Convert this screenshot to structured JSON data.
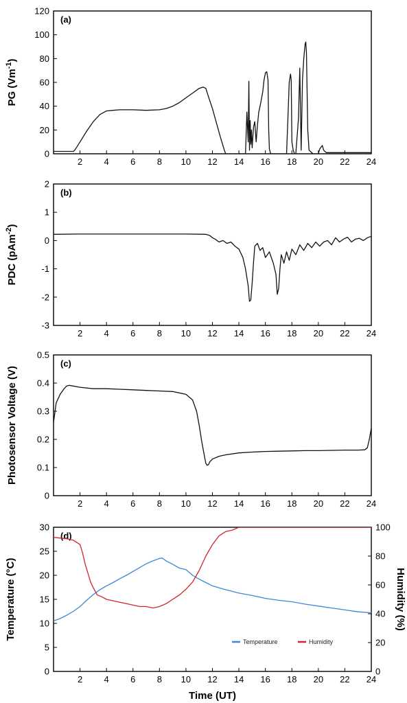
{
  "chart_data": [
    {
      "panel": "(a)",
      "type": "line",
      "ylabel": "PG (Vm-1)",
      "ylabel_base": "PG (Vm",
      "ylabel_sup": "-1",
      "ylabel_end": ")",
      "xlim": [
        0,
        24
      ],
      "ylim": [
        0,
        120
      ],
      "xticks": [
        "2",
        "4",
        "6",
        "8",
        "10",
        "12",
        "14",
        "16",
        "18",
        "20",
        "22",
        "24"
      ],
      "yticks": [
        "0",
        "20",
        "40",
        "60",
        "80",
        "100",
        "120"
      ],
      "series": [
        {
          "color": "#111111",
          "x": [
            0,
            1.5,
            1.6,
            2.0,
            2.5,
            3.0,
            3.5,
            4.0,
            4.5,
            5,
            6,
            7,
            8,
            8.5,
            9,
            9.5,
            10,
            10.5,
            11,
            11.3,
            11.5,
            11.7,
            12.0,
            12.3,
            12.6,
            12.9,
            13.0,
            14.0,
            14.5,
            14.6,
            14.7,
            14.75,
            14.8,
            14.85,
            14.9,
            14.95,
            15.0,
            15.1,
            15.2,
            15.3,
            15.4,
            15.5,
            15.6,
            15.7,
            15.8,
            15.9,
            16.0,
            16.1,
            16.2,
            16.25,
            16.3,
            16.4,
            17.0,
            17.6,
            17.7,
            17.8,
            17.9,
            17.95,
            18.0,
            18.1,
            18.2,
            18.3,
            18.5,
            18.6,
            18.7,
            18.8,
            18.9,
            19.0,
            19.05,
            19.1,
            19.2,
            19.3,
            19.6,
            20.0,
            20.1,
            20.3,
            20.4,
            20.6,
            21,
            22,
            23,
            24
          ],
          "y": [
            2,
            2,
            3,
            10,
            19,
            27,
            33,
            36,
            36.5,
            37,
            37,
            36.5,
            37,
            38,
            40,
            43,
            47,
            51,
            55,
            56,
            55,
            48,
            38,
            26,
            14,
            3,
            0,
            0,
            0,
            35,
            10,
            61,
            3,
            28,
            8,
            20,
            5,
            22,
            27,
            10,
            24,
            35,
            40,
            46,
            52,
            62,
            68,
            69,
            62,
            20,
            4,
            0,
            0,
            0,
            30,
            60,
            67,
            62,
            10,
            3,
            0,
            0,
            30,
            72,
            3,
            62,
            80,
            92,
            94,
            85,
            20,
            3,
            0,
            0,
            4,
            7,
            3,
            1,
            1,
            1,
            1,
            1
          ]
        }
      ]
    },
    {
      "panel": "(b)",
      "type": "line",
      "ylabel": "PDC (pAm-2)",
      "ylabel_base": "PDC (pAm",
      "ylabel_sup": "-2",
      "ylabel_end": ")",
      "xlim": [
        0,
        24
      ],
      "ylim": [
        -3,
        2
      ],
      "xticks": [
        "2",
        "4",
        "6",
        "8",
        "10",
        "12",
        "14",
        "16",
        "18",
        "20",
        "22",
        "24"
      ],
      "yticks": [
        "-3",
        "-2",
        "-1",
        "0",
        "1",
        "2"
      ],
      "series": [
        {
          "color": "#111111",
          "x": [
            0,
            2,
            4,
            6,
            8,
            10,
            11.5,
            11.8,
            12.0,
            12.2,
            12.5,
            12.8,
            13.1,
            13.4,
            13.7,
            14.0,
            14.3,
            14.5,
            14.7,
            14.8,
            14.9,
            15.0,
            15.1,
            15.2,
            15.4,
            15.6,
            15.8,
            16.0,
            16.3,
            16.6,
            16.8,
            16.9,
            17.0,
            17.1,
            17.2,
            17.4,
            17.6,
            17.8,
            18.0,
            18.3,
            18.6,
            18.9,
            19.2,
            19.5,
            19.8,
            20.1,
            20.4,
            20.7,
            21.0,
            21.3,
            21.6,
            21.9,
            22.2,
            22.5,
            22.8,
            23.1,
            23.4,
            23.7,
            24
          ],
          "y": [
            0.22,
            0.23,
            0.23,
            0.23,
            0.23,
            0.23,
            0.22,
            0.18,
            0.1,
            0.05,
            -0.05,
            0.0,
            -0.1,
            -0.05,
            -0.2,
            -0.3,
            -0.6,
            -1.0,
            -1.6,
            -2.15,
            -2.1,
            -1.5,
            -0.8,
            -0.2,
            -0.1,
            -0.35,
            -0.25,
            -0.6,
            -0.4,
            -0.8,
            -1.2,
            -1.9,
            -1.7,
            -1.0,
            -0.5,
            -0.8,
            -0.4,
            -0.7,
            -0.3,
            -0.5,
            -0.15,
            -0.35,
            -0.1,
            -0.25,
            -0.05,
            -0.2,
            -0.05,
            0.0,
            -0.15,
            0.1,
            -0.05,
            0.05,
            0.12,
            -0.05,
            0.05,
            0.08,
            0.0,
            0.1,
            0.15
          ]
        }
      ]
    },
    {
      "panel": "(c)",
      "type": "line",
      "ylabel": "Photosensor Voltage (V)",
      "xlim": [
        0,
        24
      ],
      "ylim": [
        0,
        0.5
      ],
      "xticks": [
        "2",
        "4",
        "6",
        "8",
        "10",
        "12",
        "14",
        "16",
        "18",
        "20",
        "22",
        "24"
      ],
      "yticks": [
        "0",
        "0.1",
        "0.2",
        "0.3",
        "0.4",
        "0.5"
      ],
      "series": [
        {
          "color": "#111111",
          "x": [
            0,
            0.2,
            0.5,
            0.8,
            1.0,
            1.2,
            2,
            3,
            4,
            5,
            6,
            7,
            8,
            9,
            10.0,
            10.5,
            10.8,
            11.0,
            11.2,
            11.4,
            11.5,
            11.6,
            11.7,
            11.8,
            12.0,
            12.5,
            13,
            14,
            15,
            16,
            17,
            18,
            19,
            20,
            21,
            22,
            23,
            23.5,
            23.7,
            23.85,
            24
          ],
          "y": [
            0.26,
            0.33,
            0.36,
            0.38,
            0.39,
            0.392,
            0.385,
            0.38,
            0.38,
            0.378,
            0.376,
            0.374,
            0.372,
            0.37,
            0.36,
            0.34,
            0.3,
            0.25,
            0.19,
            0.14,
            0.115,
            0.108,
            0.11,
            0.12,
            0.13,
            0.14,
            0.145,
            0.152,
            0.155,
            0.157,
            0.158,
            0.159,
            0.16,
            0.16,
            0.161,
            0.162,
            0.162,
            0.163,
            0.17,
            0.2,
            0.24
          ]
        }
      ]
    },
    {
      "panel": "(d)",
      "type": "line",
      "xlabel": "Time (UT)",
      "ylabel": "Temperature (°C)",
      "y2label": "Humidity (%)",
      "xlim": [
        0,
        24
      ],
      "ylim": [
        0,
        30
      ],
      "y2lim": [
        0,
        100
      ],
      "xticks": [
        "2",
        "4",
        "6",
        "8",
        "10",
        "12",
        "14",
        "16",
        "18",
        "20",
        "22",
        "24"
      ],
      "yticks": [
        "0",
        "5",
        "10",
        "15",
        "20",
        "25",
        "30"
      ],
      "y2ticks": [
        "0",
        "20",
        "40",
        "60",
        "80",
        "100"
      ],
      "legend": "bottom-right",
      "series": [
        {
          "name": "Temperature",
          "color": "#3a86d8",
          "axis": "left",
          "x": [
            0,
            0.5,
            1.0,
            1.5,
            2.0,
            2.5,
            3.0,
            3.5,
            4.0,
            4.5,
            5.0,
            5.5,
            6.0,
            6.5,
            7.0,
            7.5,
            8.0,
            8.2,
            8.5,
            9.0,
            9.5,
            10.0,
            10.5,
            11.0,
            11.5,
            12.0,
            13,
            14,
            15,
            16,
            17,
            18,
            19,
            20,
            21,
            22,
            23,
            24
          ],
          "y": [
            10.5,
            11.0,
            11.7,
            12.5,
            13.5,
            14.8,
            16.0,
            17.0,
            17.8,
            18.5,
            19.3,
            20.0,
            20.8,
            21.6,
            22.4,
            23.0,
            23.5,
            23.6,
            23.0,
            22.3,
            21.5,
            21.2,
            20.0,
            19.2,
            18.5,
            17.8,
            17.0,
            16.3,
            15.8,
            15.2,
            14.8,
            14.5,
            14.0,
            13.6,
            13.2,
            12.8,
            12.4,
            12.2
          ]
        },
        {
          "name": "Humidity",
          "color": "#d0232e",
          "axis": "right",
          "x": [
            0,
            1.0,
            1.5,
            2.0,
            2.2,
            2.4,
            2.6,
            2.8,
            3.0,
            3.3,
            3.6,
            4.0,
            4.5,
            5.0,
            5.5,
            6.0,
            6.5,
            7.0,
            7.5,
            8.0,
            8.5,
            9.0,
            9.5,
            10.0,
            10.5,
            11.0,
            11.5,
            12.0,
            12.5,
            13.0,
            13.5,
            14,
            16,
            18,
            20,
            22,
            24
          ],
          "y": [
            93,
            92,
            91,
            88,
            82,
            74,
            68,
            62,
            58,
            53,
            52,
            50,
            49,
            48,
            47,
            46,
            45,
            45,
            44,
            45,
            47,
            50,
            53,
            57,
            62,
            70,
            80,
            88,
            94,
            97,
            98,
            100,
            100,
            100,
            100,
            100,
            100
          ]
        }
      ]
    }
  ]
}
